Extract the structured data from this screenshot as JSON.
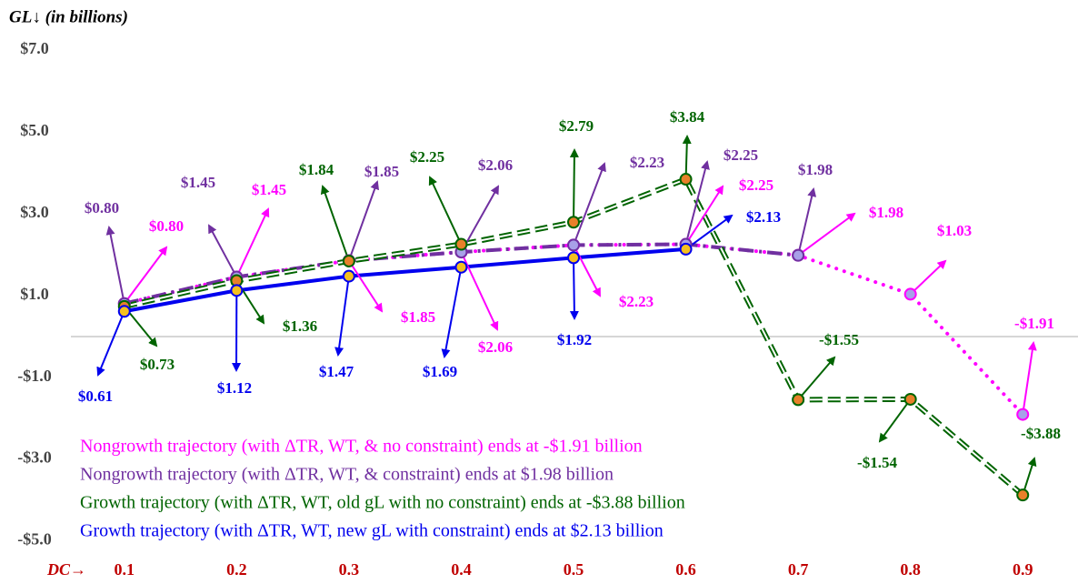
{
  "chart_data": {
    "type": "line",
    "y_label": "GL↓ (in billions)",
    "x_label": "DC→",
    "x": [
      0.1,
      0.2,
      0.3,
      0.4,
      0.5,
      0.6,
      0.7,
      0.8,
      0.9
    ],
    "xlim": [
      0.05,
      0.95
    ],
    "xticks": [
      0.1,
      0.2,
      0.3,
      0.4,
      0.5,
      0.6,
      0.7,
      0.8,
      0.9
    ],
    "ylim": [
      -5.5,
      8.2
    ],
    "yticks": [
      {
        "value": 7,
        "label": "$7.0"
      },
      {
        "value": 5,
        "label": "$5.0"
      },
      {
        "value": 3,
        "label": "$3.0"
      },
      {
        "value": 1,
        "label": "$1.0"
      },
      {
        "value": -1,
        "label": "-$1.0"
      },
      {
        "value": -3,
        "label": "-$3.0"
      },
      {
        "value": -5,
        "label": "-$5.0"
      }
    ],
    "grid": false,
    "series": [
      {
        "name": "Nongrowth trajectory (with ΔTR, WT, & no constraint) ends at -$1.91 billion",
        "color": "#ff00ff",
        "marker_color": "#a8a0e8",
        "line_style": "dotted",
        "values": [
          0.8,
          1.45,
          1.85,
          2.06,
          2.23,
          2.25,
          1.98,
          1.03,
          -1.91
        ],
        "value_labels": [
          "$0.80",
          "$1.45",
          "$1.85",
          "$2.06",
          "$2.23",
          "$2.25",
          "$1.98",
          "$1.03",
          "-$1.91"
        ]
      },
      {
        "name": "Nongrowth trajectory (with ΔTR, WT, & constraint) ends at $1.98 billion",
        "color": "#7030a0",
        "marker_color": "#a8a0e8",
        "line_style": "dash-dot",
        "values": [
          0.8,
          1.45,
          1.85,
          2.06,
          2.23,
          2.25,
          1.98,
          null,
          null
        ],
        "value_labels": [
          "$0.80",
          "$1.45",
          "$1.85",
          "$2.06",
          "$2.23",
          "$2.25",
          "$1.98",
          null,
          null
        ]
      },
      {
        "name": "Growth trajectory (with ΔTR, WT, old gL with no constraint) ends at -$3.88 billion",
        "color": "#006400",
        "marker_color": "#e8802a",
        "line_style": "dashed",
        "values": [
          0.73,
          1.36,
          1.84,
          2.25,
          2.79,
          3.84,
          -1.55,
          -1.54,
          -3.88
        ],
        "value_labels": [
          "$0.73",
          "$1.36",
          "$1.84",
          "$2.25",
          "$2.79",
          "$3.84",
          "-$1.55",
          "-$1.54",
          "-$3.88"
        ]
      },
      {
        "name": "Growth trajectory (with ΔTR, WT, new gL with constraint) ends at $2.13 billion",
        "color": "#0000ee",
        "marker_color": "#f5c020",
        "line_style": "solid",
        "values": [
          0.61,
          1.12,
          1.47,
          1.69,
          1.92,
          2.13,
          null,
          null,
          null
        ],
        "value_labels": [
          "$0.61",
          "$1.12",
          "$1.47",
          "$1.69",
          "$1.92",
          "$2.13",
          null,
          null,
          null
        ]
      }
    ]
  }
}
